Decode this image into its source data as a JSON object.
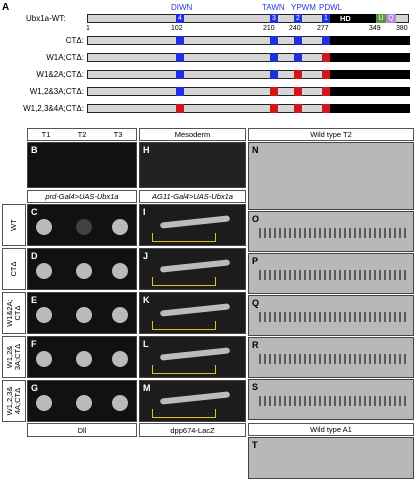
{
  "panel_a": {
    "letter": "A",
    "wt_label": "Ubx1a-WT:",
    "motif_labels": {
      "m4": "DIWN",
      "m3": "TAWN",
      "m2": "YPWM",
      "m1": "PDWL"
    },
    "box_numbers": {
      "b4": "4",
      "b3": "3",
      "b2": "2",
      "b1": "1"
    },
    "hd_label": "HD",
    "uq_u": "U",
    "uq_q": "Q",
    "positions": {
      "p1": "1",
      "p102": "102",
      "p210": "210",
      "p240": "240",
      "p277": "277",
      "p349": "349",
      "p380": "380"
    },
    "constructs": [
      "CTΔ:",
      "W1A;CTΔ:",
      "W1&2A;CTΔ:",
      "W1,2&3A;CTΔ:",
      "W1,2,3&4A;CTΔ:"
    ],
    "colors": {
      "blue": "#1f2fe0",
      "red": "#d01818",
      "hd": "#000000",
      "u": "#5b9a3c",
      "q": "#b08cd8",
      "bar": "#d6d6d6"
    }
  },
  "grid": {
    "col_headers": {
      "t1": "T1",
      "t2": "T2",
      "t3": "T3",
      "mesoderm": "Mesoderm",
      "wt_t2": "Wild type T2"
    },
    "driver_prd": "prd-Gal4>UAS-Ubx1a",
    "driver_ag11": "AG11-Gal4>UAS-Ubx1a",
    "row_labels": [
      "WT",
      "CTΔ",
      "W1&2A;\nCTΔ",
      "W1,2&\n3A;CTΔ",
      "W1,2,3&\n4A;CTΔ"
    ],
    "letters_left": [
      "B",
      "C",
      "D",
      "E",
      "F",
      "G"
    ],
    "letters_mid": [
      "H",
      "I",
      "J",
      "K",
      "L",
      "M"
    ],
    "letters_right": [
      "N",
      "O",
      "P",
      "Q",
      "R",
      "S",
      "T"
    ],
    "footer_dll": "Dll",
    "footer_dpp": "dpp674-LacZ",
    "footer_wt_a1": "Wild type A1"
  }
}
